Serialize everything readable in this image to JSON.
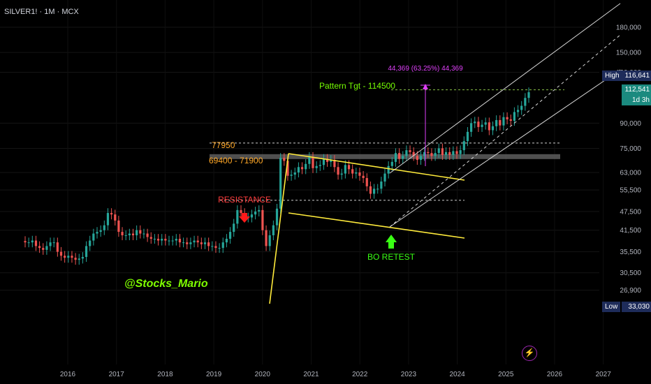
{
  "header": {
    "symbol": "SILVER1! · 1M · MCX"
  },
  "price_scale": {
    "ticks": [
      "180,000",
      "150,000",
      "130,000",
      "90,000",
      "75,000",
      "63,000",
      "55,500",
      "47,500",
      "41,500",
      "35,500",
      "30,500",
      "26,900"
    ],
    "high_label": "High",
    "high_value": "116,641",
    "last_value": "112,541",
    "countdown": "1d 3h",
    "low_label": "Low",
    "low_value": "33,030"
  },
  "time_scale": {
    "ticks": [
      "2016",
      "2017",
      "2018",
      "2019",
      "2020",
      "2021",
      "2022",
      "2023",
      "2024",
      "2025",
      "2026",
      "2027"
    ]
  },
  "annotations": {
    "pattern_target": "Pattern Tgt - 114500",
    "measure": "44,369 (63.25%) 44,369",
    "level_77950": "77950",
    "zone": "69400 - 71900",
    "resistance": "RESISTANCE",
    "bo_retest": "BO RETEST",
    "watermark": "@Stocks_Mario"
  },
  "colors": {
    "up": "#26a69a",
    "down": "#ef5350",
    "pattern": "#ffeb3b",
    "target": "#76ff03",
    "measure": "#e040fb"
  },
  "chart_data": {
    "type": "candlestick",
    "title": "SILVER1! · 1M · MCX",
    "ylim": [
      26900,
      180000
    ],
    "y_scale": "log",
    "x_ticks": [
      "2016",
      "2017",
      "2018",
      "2019",
      "2020",
      "2021",
      "2022",
      "2023",
      "2024",
      "2025",
      "2026",
      "2027"
    ],
    "series_close": [
      38000,
      38000,
      38500,
      37000,
      36500,
      36000,
      37000,
      38000,
      38000,
      35500,
      34500,
      34000,
      34500,
      34000,
      33500,
      33800,
      34200,
      37000,
      38500,
      40500,
      41000,
      41500,
      43000,
      47000,
      46500,
      44500,
      41000,
      40000,
      40000,
      40500,
      40000,
      41500,
      40500,
      40500,
      39500,
      39000,
      39000,
      38500,
      39000,
      38500,
      38500,
      38500,
      39000,
      38000,
      38000,
      37500,
      38000,
      38500,
      38000,
      37500,
      38000,
      37000,
      37000,
      36500,
      36500,
      38000,
      39000,
      41000,
      43500,
      48000,
      47000,
      45500,
      45500,
      46500,
      47500,
      48000,
      41500,
      37000,
      40000,
      43000,
      48500,
      70000,
      68500,
      61500,
      62000,
      63000,
      65500,
      64500,
      67000,
      70500,
      65000,
      66000,
      66500,
      69500,
      68000,
      69000,
      65500,
      62000,
      62500,
      66500,
      64500,
      62500,
      63000,
      61500,
      60500,
      57000,
      54000,
      56000,
      56000,
      59000,
      62500,
      66000,
      68000,
      72500,
      69500,
      71000,
      74000,
      73000,
      71000,
      69000,
      71000,
      73000,
      72500,
      71000,
      72500,
      75000,
      71500,
      73000,
      71500,
      73500,
      72000,
      74000,
      79000,
      84500,
      90000,
      91000,
      87500,
      89000,
      90500,
      85500,
      88000,
      92000,
      88500,
      94000,
      92500,
      91500,
      97500,
      99000,
      102000,
      108000,
      112541
    ],
    "annotations": [
      "77950",
      "69400 - 71900",
      "RESISTANCE",
      "BO RETEST",
      "Pattern Tgt - 114500",
      "44,369 (63.25%) 44,369"
    ]
  }
}
